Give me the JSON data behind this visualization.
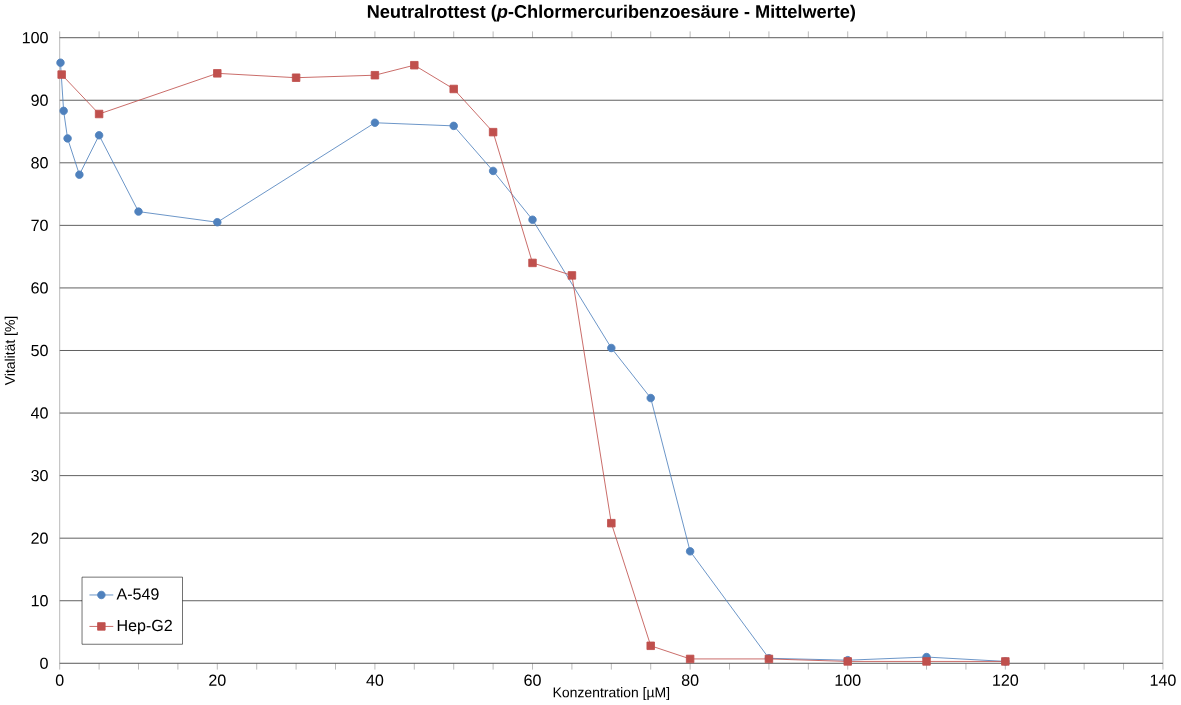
{
  "chart_data": {
    "type": "line",
    "title": "Neutralrottest (*p*-Chlormercuribenzoesäure - Mittelwerte)",
    "xlabel": "Konzentration [µM]",
    "ylabel": "Vitalität [%]",
    "xlim": [
      0,
      140
    ],
    "ylim": [
      0,
      100
    ],
    "xticks": [
      0,
      {
        "value": 5,
        "label": null
      },
      {
        "value": 10,
        "label": null
      },
      {
        "value": 15,
        "label": null
      },
      20,
      {
        "value": 25,
        "label": null
      },
      {
        "value": 30,
        "label": null
      },
      {
        "value": 35,
        "label": null
      },
      40,
      {
        "value": 45,
        "label": null
      },
      {
        "value": 50,
        "label": null
      },
      {
        "value": 55,
        "label": null
      },
      60,
      {
        "value": 65,
        "label": null
      },
      {
        "value": 70,
        "label": null
      },
      {
        "value": 75,
        "label": null
      },
      80,
      {
        "value": 85,
        "label": null
      },
      {
        "value": 90,
        "label": null
      },
      {
        "value": 95,
        "label": null
      },
      100,
      {
        "value": 105,
        "label": null
      },
      {
        "value": 110,
        "label": null
      },
      {
        "value": 115,
        "label": null
      },
      120,
      {
        "value": 125,
        "label": null
      },
      {
        "value": 130,
        "label": null
      },
      {
        "value": 135,
        "label": null
      },
      140
    ],
    "yticks": [
      0,
      10,
      20,
      30,
      40,
      50,
      60,
      70,
      80,
      90,
      100
    ],
    "grid": "y",
    "legend": "bottom left",
    "line_style": "solid",
    "series": [
      {
        "name": "A-549",
        "color": "#4f81bd",
        "marker": "circle",
        "x": [
          0.1,
          0.5,
          1,
          2.5,
          5,
          10,
          20,
          40,
          50,
          55,
          60,
          70,
          75,
          80,
          90,
          100,
          110,
          120
        ],
        "values": [
          96.0,
          88.3,
          83.9,
          78.1,
          84.4,
          72.2,
          70.5,
          86.4,
          85.9,
          78.7,
          70.9,
          50.4,
          42.4,
          17.9,
          0.8,
          0.5,
          1.0,
          0.3
        ]
      },
      {
        "name": "Hep-G2",
        "color": "#c0504d",
        "marker": "square",
        "x": [
          0.25,
          5,
          20,
          30,
          40,
          45,
          50,
          55,
          60,
          65,
          70,
          75,
          80,
          90,
          100,
          110,
          120
        ],
        "values": [
          94.1,
          87.8,
          94.3,
          93.6,
          94.0,
          95.6,
          91.8,
          84.9,
          64.0,
          62.0,
          22.4,
          2.8,
          0.7,
          0.7,
          0.3,
          0.3,
          0.3
        ]
      }
    ]
  }
}
